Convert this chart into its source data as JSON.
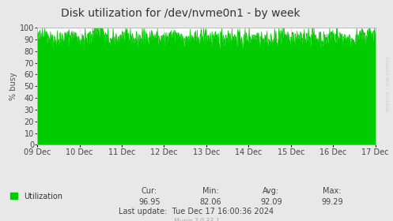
{
  "title": "Disk utilization for /dev/nvme0n1 - by week",
  "ylabel": "% busy",
  "bg_color": "#e8e8e8",
  "plot_bg_color": "#ffffff",
  "line_color": "#00cc00",
  "fill_color": "#00cc00",
  "x_tick_labels": [
    "09 Dec",
    "10 Dec",
    "11 Dec",
    "12 Dec",
    "13 Dec",
    "14 Dec",
    "15 Dec",
    "16 Dec",
    "17 Dec"
  ],
  "ylim": [
    0,
    100
  ],
  "yticks": [
    0,
    10,
    20,
    30,
    40,
    50,
    60,
    70,
    80,
    90,
    100
  ],
  "legend_label": "Utilization",
  "legend_color": "#00cc00",
  "cur_val": "96.95",
  "min_val": "82.06",
  "avg_val": "92.09",
  "max_val": "99.29",
  "last_update": "Tue Dec 17 16:00:36 2024",
  "munin_version": "Munin 2.0.33-1",
  "watermark": "RRDTOOL / TOBI OETIKER",
  "title_fontsize": 10,
  "axis_fontsize": 7,
  "label_fontsize": 7,
  "stats_fontsize": 7,
  "seed": 42,
  "n_points": 800,
  "base_value": 91.5,
  "noise_scale": 3.5
}
